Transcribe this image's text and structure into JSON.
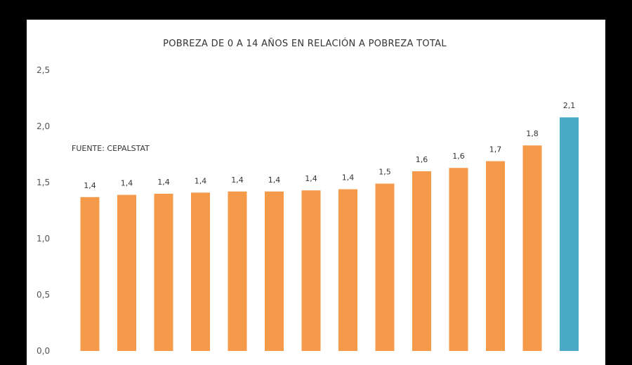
{
  "chart_data": {
    "type": "bar",
    "title": "POBREZA DE 0 A 14 AÑOS EN RELACIÓN A POBREZA TOTAL",
    "annotation": "FUENTE: CEPALSTAT",
    "ylim": [
      0,
      2.5
    ],
    "yticks": [
      "0,0",
      "0,5",
      "1,0",
      "1,5",
      "2,0",
      "2,5"
    ],
    "grid": false,
    "categories": [
      "",
      "",
      "",
      "",
      "",
      "",
      "",
      "",
      "",
      "",
      "",
      "",
      "",
      ""
    ],
    "values": [
      1.37,
      1.39,
      1.4,
      1.41,
      1.42,
      1.42,
      1.43,
      1.44,
      1.49,
      1.6,
      1.63,
      1.69,
      1.83,
      2.08
    ],
    "data_labels": [
      "1,4",
      "1,4",
      "1,4",
      "1,4",
      "1,4",
      "1,4",
      "1,4",
      "1,4",
      "1,5",
      "1,6",
      "1,6",
      "1,7",
      "1,8",
      "2,1"
    ],
    "colors": {
      "default": "#F59A4A",
      "highlight": "#4BABC6"
    },
    "highlight_index": 13
  }
}
